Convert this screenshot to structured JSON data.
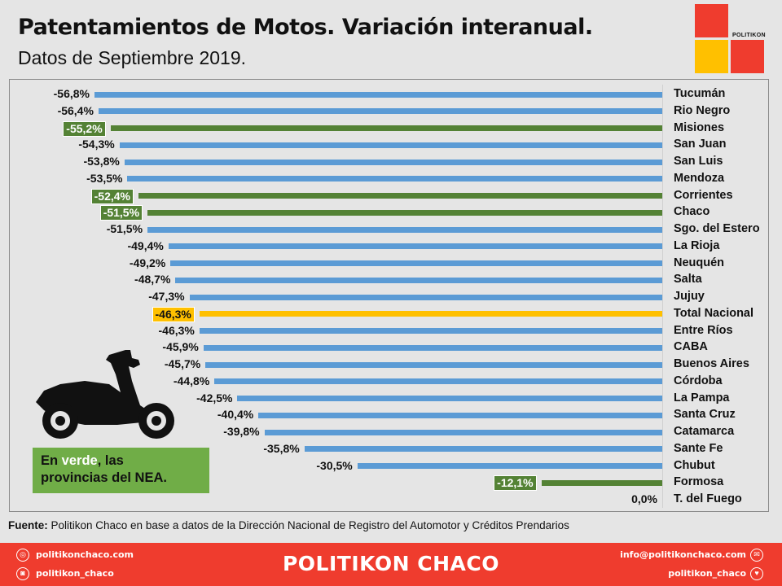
{
  "header": {
    "title": "Patentamientos de Motos. Variación interanual.",
    "subtitle": "Datos de Septiembre 2019.",
    "logo_text": "POLITIKON"
  },
  "chart_data": {
    "type": "bar",
    "orientation": "horizontal",
    "title": "Patentamientos de Motos. Variación interanual.",
    "subtitle": "Datos de Septiembre 2019.",
    "xlabel": "",
    "ylabel": "",
    "unit": "%",
    "xlim": [
      -56.8,
      0
    ],
    "grid": false,
    "categories": [
      "Tucumán",
      "Rio Negro",
      "Misiones",
      "San Juan",
      "San Luis",
      "Mendoza",
      "Corrientes",
      "Chaco",
      "Sgo. del Estero",
      "La Rioja",
      "Neuquén",
      "Salta",
      "Jujuy",
      "Total Nacional",
      "Entre Ríos",
      "CABA",
      "Buenos Aires",
      "Córdoba",
      "La Pampa",
      "Santa Cruz",
      "Catamarca",
      "Sante Fe",
      "Chubut",
      "Formosa",
      "T. del Fuego"
    ],
    "values": [
      -56.8,
      -56.4,
      -55.2,
      -54.3,
      -53.8,
      -53.5,
      -52.4,
      -51.5,
      -51.5,
      -49.4,
      -49.2,
      -48.7,
      -47.3,
      -46.3,
      -46.3,
      -45.9,
      -45.7,
      -44.8,
      -42.5,
      -40.4,
      -39.8,
      -35.8,
      -30.5,
      -12.1,
      0.0
    ],
    "labels": [
      "-56,8%",
      "-56,4%",
      "-55,2%",
      "-54,3%",
      "-53,8%",
      "-53,5%",
      "-52,4%",
      "-51,5%",
      "-51,5%",
      "-49,4%",
      "-49,2%",
      "-48,7%",
      "-47,3%",
      "-46,3%",
      "-46,3%",
      "-45,9%",
      "-45,7%",
      "-44,8%",
      "-42,5%",
      "-40,4%",
      "-39,8%",
      "-35,8%",
      "-30,5%",
      "-12,1%",
      "0,0%"
    ],
    "groups": [
      "other",
      "other",
      "nea",
      "other",
      "other",
      "other",
      "nea",
      "nea",
      "other",
      "other",
      "other",
      "other",
      "other",
      "total",
      "other",
      "other",
      "other",
      "other",
      "other",
      "other",
      "other",
      "other",
      "other",
      "nea",
      "other"
    ],
    "colors": {
      "other": "#5b9bd5",
      "nea": "#548235",
      "total": "#ffc000"
    }
  },
  "note": {
    "prefix": "En ",
    "highlight": "verde",
    "suffix": ", las",
    "line2": "provincias del NEA."
  },
  "source": {
    "label": "Fuente:",
    "text": " Politikon Chaco en base a datos de la Dirección Nacional de Registro del Automotor  y Créditos Prendarios"
  },
  "footer": {
    "brand": "POLITIKON CHACO",
    "website": "politikonchaco.com",
    "instagram": "politikon_chaco",
    "email": "info@politikonchaco.com",
    "twitter": "politikon_chaco",
    "bg_color": "#ef3c2e"
  }
}
